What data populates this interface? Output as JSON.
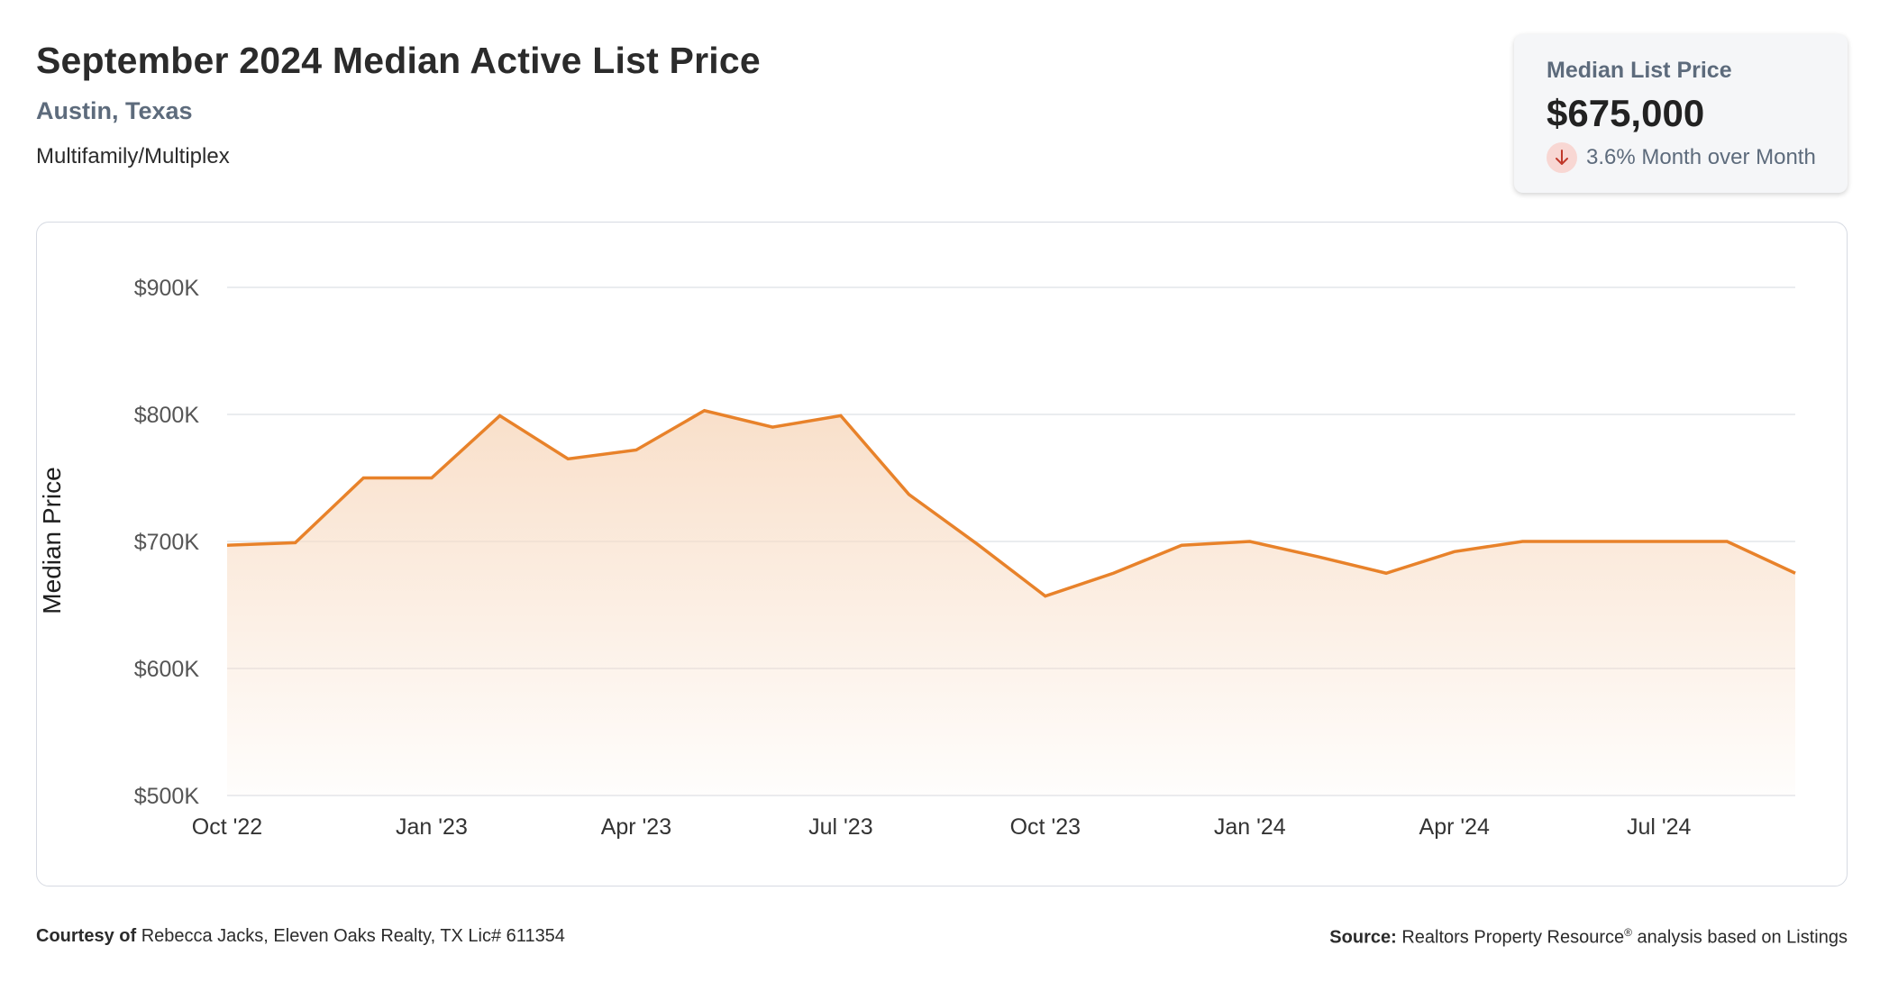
{
  "header": {
    "title": "September 2024 Median Active List Price",
    "subtitle": "Austin, Texas",
    "category": "Multifamily/Multiplex"
  },
  "stat_card": {
    "label": "Median List Price",
    "value": "$675,000",
    "change": "3.6% Month over Month",
    "direction_icon": "arrow-down-icon",
    "change_color": "#c0392b"
  },
  "footer": {
    "courtesy_label": "Courtesy of",
    "courtesy_text": "Rebecca Jacks, Eleven Oaks Realty, TX Lic# 611354",
    "source_label": "Source:",
    "source_text": "Realtors Property Resource",
    "source_mark": "®",
    "source_suffix": "analysis based on Listings"
  },
  "colors": {
    "line": "#e8822a",
    "fill_top": "#f8dcc4",
    "grid": "#e3e5ea"
  },
  "chart_data": {
    "type": "area",
    "title": "September 2024 Median Active List Price",
    "xlabel": "",
    "ylabel": "Median Price",
    "ylim": [
      500000,
      900000
    ],
    "yticks": [
      500000,
      600000,
      700000,
      800000,
      900000
    ],
    "ytick_labels": [
      "$500K",
      "$600K",
      "$700K",
      "$800K",
      "$900K"
    ],
    "xtick_labels": [
      "Oct '22",
      "Jan '23",
      "Apr '23",
      "Jul '23",
      "Oct '23",
      "Jan '24",
      "Apr '24",
      "Jul '24"
    ],
    "grid": true,
    "x": [
      "2022-10",
      "2022-11",
      "2022-12",
      "2023-01",
      "2023-02",
      "2023-03",
      "2023-04",
      "2023-05",
      "2023-06",
      "2023-07",
      "2023-08",
      "2023-09",
      "2023-10",
      "2023-11",
      "2023-12",
      "2024-01",
      "2024-02",
      "2024-03",
      "2024-04",
      "2024-05",
      "2024-06",
      "2024-07",
      "2024-08",
      "2024-09"
    ],
    "series": [
      {
        "values": [
          697000,
          699000,
          750000,
          750000,
          799000,
          765000,
          772000,
          803000,
          790000,
          799000,
          737000,
          698000,
          657000,
          675000,
          697000,
          700000,
          688000,
          675000,
          692000,
          700000,
          700000,
          700000,
          700000,
          675000
        ]
      }
    ]
  }
}
